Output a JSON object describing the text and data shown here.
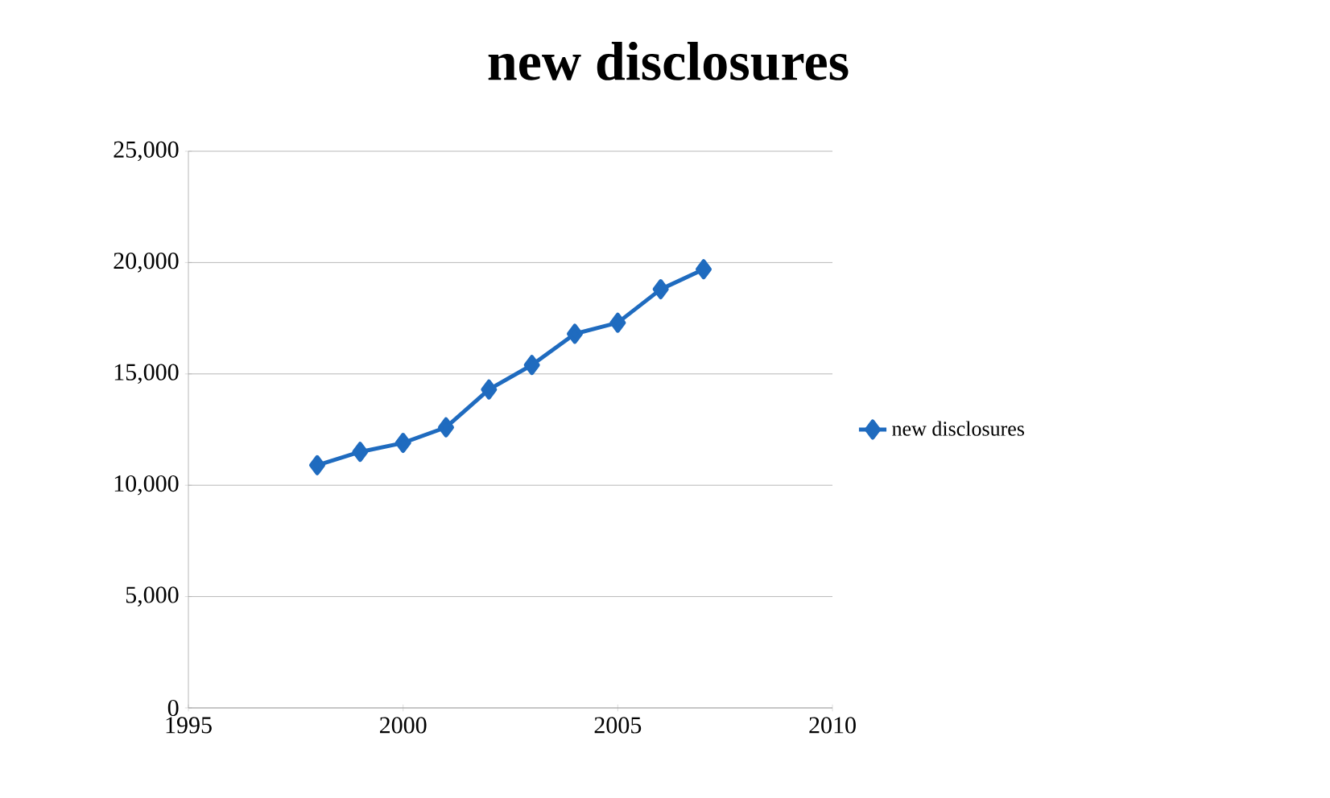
{
  "chart_data": {
    "type": "line",
    "title": "new disclosures",
    "x": [
      1998,
      1999,
      2000,
      2001,
      2002,
      2003,
      2004,
      2005,
      2006,
      2007
    ],
    "series": [
      {
        "name": "new disclosures",
        "color": "#1f6bbf",
        "values": [
          10900,
          11500,
          11900,
          12600,
          14300,
          15400,
          16800,
          17300,
          18800,
          19700
        ]
      }
    ],
    "xlim": [
      1995,
      2010
    ],
    "xticks": [
      1995,
      2000,
      2005,
      2010
    ],
    "ylim": [
      0,
      25000
    ],
    "yticks": [
      0,
      {
        "value": 5000,
        "label": "5,000"
      },
      {
        "value": 10000,
        "label": "10,000"
      },
      {
        "value": 15000,
        "label": "15,000"
      },
      {
        "value": 20000,
        "label": "20,000"
      },
      {
        "value": 25000,
        "label": "25,000"
      }
    ],
    "grid": "y",
    "legend": "right",
    "marker": "diamond",
    "line_style": "solid"
  }
}
